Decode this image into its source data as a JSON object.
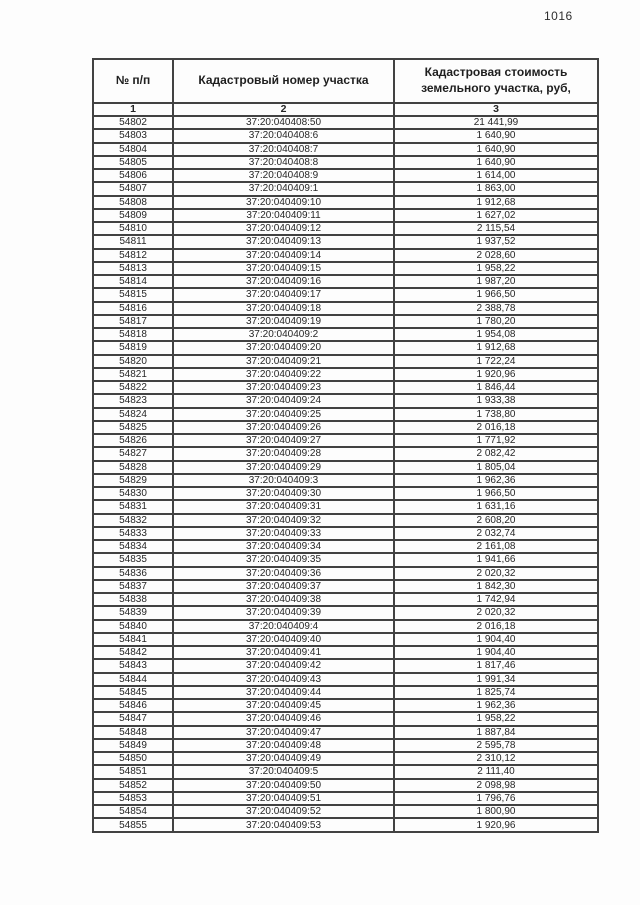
{
  "page": {
    "number": "1016"
  },
  "table": {
    "headers": [
      "№ п/п",
      "Кадастровый номер участка",
      "Кадастровая стоимость земельного участка, руб,"
    ],
    "column_indices": [
      "1",
      "2",
      "3"
    ],
    "rows": [
      [
        "54802",
        "37:20:040408:50",
        "21 441,99"
      ],
      [
        "54803",
        "37:20:040408:6",
        "1 640,90"
      ],
      [
        "54804",
        "37:20:040408:7",
        "1 640,90"
      ],
      [
        "54805",
        "37:20:040408:8",
        "1 640,90"
      ],
      [
        "54806",
        "37:20:040408:9",
        "1 614,00"
      ],
      [
        "54807",
        "37:20:040409:1",
        "1 863,00"
      ],
      [
        "54808",
        "37:20:040409:10",
        "1 912,68"
      ],
      [
        "54809",
        "37:20:040409:11",
        "1 627,02"
      ],
      [
        "54810",
        "37:20:040409:12",
        "2 115,54"
      ],
      [
        "54811",
        "37:20:040409:13",
        "1 937,52"
      ],
      [
        "54812",
        "37:20:040409:14",
        "2 028,60"
      ],
      [
        "54813",
        "37:20:040409:15",
        "1 958,22"
      ],
      [
        "54814",
        "37:20:040409:16",
        "1 987,20"
      ],
      [
        "54815",
        "37:20:040409:17",
        "1 966,50"
      ],
      [
        "54816",
        "37:20:040409:18",
        "2 388,78"
      ],
      [
        "54817",
        "37:20:040409:19",
        "1 780,20"
      ],
      [
        "54818",
        "37:20:040409:2",
        "1 954,08"
      ],
      [
        "54819",
        "37:20:040409:20",
        "1 912,68"
      ],
      [
        "54820",
        "37:20:040409:21",
        "1 722,24"
      ],
      [
        "54821",
        "37:20:040409:22",
        "1 920,96"
      ],
      [
        "54822",
        "37:20:040409:23",
        "1 846,44"
      ],
      [
        "54823",
        "37:20:040409:24",
        "1 933,38"
      ],
      [
        "54824",
        "37:20:040409:25",
        "1 738,80"
      ],
      [
        "54825",
        "37:20:040409:26",
        "2 016,18"
      ],
      [
        "54826",
        "37:20:040409:27",
        "1 771,92"
      ],
      [
        "54827",
        "37:20:040409:28",
        "2 082,42"
      ],
      [
        "54828",
        "37:20:040409:29",
        "1 805,04"
      ],
      [
        "54829",
        "37:20:040409:3",
        "1 962,36"
      ],
      [
        "54830",
        "37:20:040409:30",
        "1 966,50"
      ],
      [
        "54831",
        "37:20:040409:31",
        "1 631,16"
      ],
      [
        "54832",
        "37:20:040409:32",
        "2 608,20"
      ],
      [
        "54833",
        "37:20:040409:33",
        "2 032,74"
      ],
      [
        "54834",
        "37:20:040409:34",
        "2 161,08"
      ],
      [
        "54835",
        "37:20:040409:35",
        "1 941,66"
      ],
      [
        "54836",
        "37:20:040409:36",
        "2 020,32"
      ],
      [
        "54837",
        "37:20:040409:37",
        "1 842,30"
      ],
      [
        "54838",
        "37:20:040409:38",
        "1 742,94"
      ],
      [
        "54839",
        "37:20:040409:39",
        "2 020,32"
      ],
      [
        "54840",
        "37:20:040409:4",
        "2 016,18"
      ],
      [
        "54841",
        "37:20:040409:40",
        "1 904,40"
      ],
      [
        "54842",
        "37:20:040409:41",
        "1 904,40"
      ],
      [
        "54843",
        "37:20:040409:42",
        "1 817,46"
      ],
      [
        "54844",
        "37:20:040409:43",
        "1 991,34"
      ],
      [
        "54845",
        "37:20:040409:44",
        "1 825,74"
      ],
      [
        "54846",
        "37:20:040409:45",
        "1 962,36"
      ],
      [
        "54847",
        "37:20:040409:46",
        "1 958,22"
      ],
      [
        "54848",
        "37:20:040409:47",
        "1 887,84"
      ],
      [
        "54849",
        "37:20:040409:48",
        "2 595,78"
      ],
      [
        "54850",
        "37:20:040409:49",
        "2 310,12"
      ],
      [
        "54851",
        "37:20:040409:5",
        "2 111,40"
      ],
      [
        "54852",
        "37:20:040409:50",
        "2 098,98"
      ],
      [
        "54853",
        "37:20:040409:51",
        "1 796,76"
      ],
      [
        "54854",
        "37:20:040409:52",
        "1 800,90"
      ],
      [
        "54855",
        "37:20:040409:53",
        "1 920,96"
      ]
    ]
  }
}
